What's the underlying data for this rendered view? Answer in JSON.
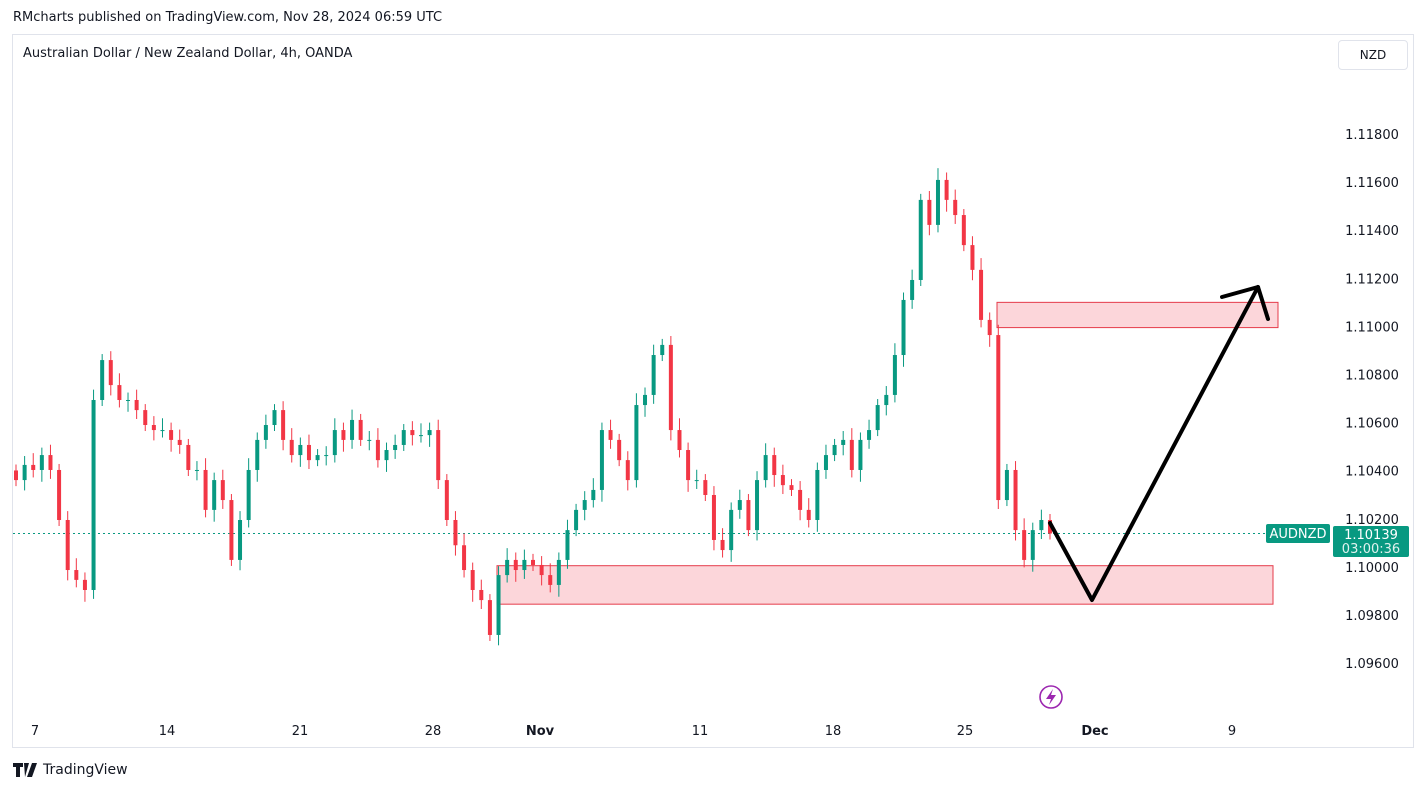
{
  "header": {
    "published": "RMcharts published on TradingView.com, Nov 28, 2024 06:59 UTC",
    "symbol_title": "Australian Dollar / New Zealand Dollar, 4h, OANDA",
    "currency_button": "NZD"
  },
  "footer": {
    "brand": "TradingView"
  },
  "chart_data": {
    "type": "candlestick",
    "symbol": "AUDNZD",
    "interval": "4h",
    "closes": [
      1.10361,
      1.10424,
      1.10403,
      1.10465,
      1.10403,
      1.10195,
      1.09987,
      1.09946,
      1.09904,
      1.10694,
      1.1086,
      1.10756,
      1.10694,
      1.10694,
      1.10652,
      1.1059,
      1.10569,
      1.10569,
      1.10528,
      1.10507,
      1.10403,
      1.10403,
      1.10237,
      1.10361,
      1.10278,
      1.10029,
      1.10195,
      1.10403,
      1.10528,
      1.1059,
      1.10652,
      1.10528,
      1.10465,
      1.10507,
      1.10444,
      1.10465,
      1.10465,
      1.10569,
      1.10528,
      1.10611,
      1.10528,
      1.10528,
      1.10444,
      1.10486,
      1.10507,
      1.10569,
      1.10548,
      1.10548,
      1.10569,
      1.10361,
      1.10195,
      1.1009,
      1.09987,
      1.09904,
      1.09862,
      1.09717,
      1.09966,
      1.10029,
      1.09987,
      1.10029,
      1.10008,
      1.09966,
      1.09925,
      1.10029,
      1.10153,
      1.10237,
      1.10278,
      1.1032,
      1.10569,
      1.10528,
      1.10444,
      1.10361,
      1.10673,
      1.10715,
      1.10881,
      1.10923,
      1.10569,
      1.10486,
      1.10361,
      1.10361,
      1.10299,
      1.10112,
      1.1007,
      1.10237,
      1.10278,
      1.10153,
      1.10361,
      1.10465,
      1.10382,
      1.1034,
      1.1032,
      1.10237,
      1.10195,
      1.10403,
      1.10465,
      1.10507,
      1.10528,
      1.10403,
      1.10528,
      1.10569,
      1.10673,
      1.10715,
      1.10881,
      1.1111,
      1.11193,
      1.11526,
      1.11422,
      1.11609,
      1.11526,
      1.11463,
      1.11338,
      1.11235,
      1.11027,
      1.10964,
      1.10278,
      1.10403,
      1.10153,
      1.10029,
      1.10153,
      1.10195,
      1.10139
    ],
    "price_ticks": [
      "1.11800",
      "1.11600",
      "1.11400",
      "1.11200",
      "1.11000",
      "1.10800",
      "1.10600",
      "1.10400",
      "1.10200",
      "1.10000",
      "1.09800",
      "1.09600"
    ],
    "time_ticks": [
      "7",
      "14",
      "21",
      "28",
      "Nov",
      "11",
      "18",
      "25",
      "Dec",
      "9"
    ],
    "ylim": [
      1.0945,
      1.1205
    ],
    "zones": [
      {
        "top": 1.111,
        "bottom": 1.10995
      },
      {
        "top": 1.10005,
        "bottom": 1.09845
      }
    ],
    "last_price": {
      "label": "AUDNZD",
      "value": "1.10139",
      "countdown": "03:00:36",
      "price": 1.10139
    },
    "colors": {
      "up": "#089981",
      "down": "#f23645",
      "zone_fill": "#fcd6da",
      "zone_border": "#e53b4a",
      "last_price": "#089981",
      "alert_icon": "#9c27b0"
    }
  }
}
